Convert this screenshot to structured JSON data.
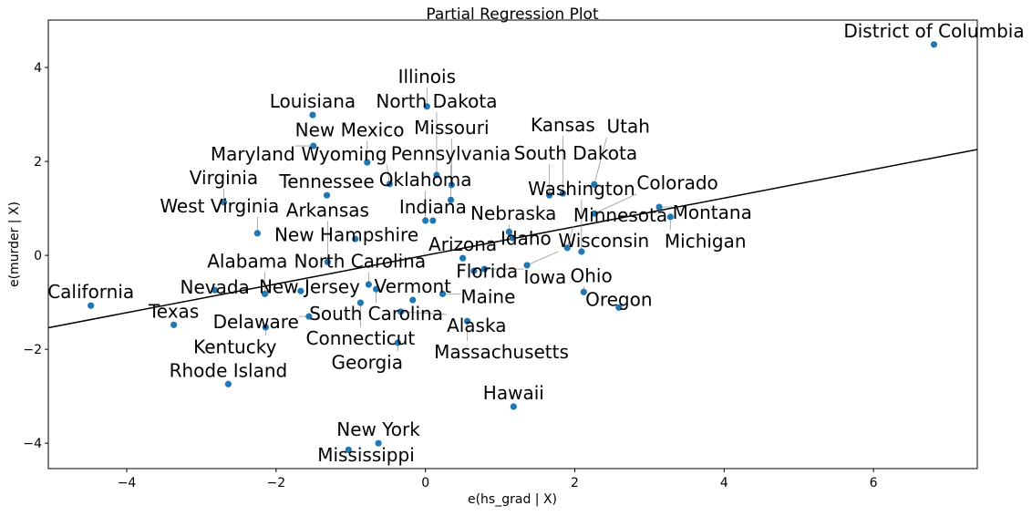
{
  "chart_data": {
    "type": "scatter",
    "title": "Partial Regression Plot",
    "xlabel": "e(hs_grad | X)",
    "ylabel": "e(murder | X)",
    "xlim": [
      -5.05,
      7.39
    ],
    "ylim": [
      -4.54,
      5.01
    ],
    "xticks": [
      -4,
      -2,
      0,
      2,
      4,
      6
    ],
    "yticks": [
      -4,
      -2,
      0,
      2,
      4
    ],
    "grid": false,
    "point_color": "#1f77b4",
    "line_color": "#000000",
    "fit_line": {
      "slope": 0.305,
      "intercept": 0.0
    },
    "points": [
      {
        "label": "District of Columbia",
        "x": 6.81,
        "y": 4.49
      },
      {
        "label": "Louisiana",
        "x": -1.51,
        "y": 2.99
      },
      {
        "label": "Illinois",
        "x": 0.02,
        "y": 3.17
      },
      {
        "label": "Maryland",
        "x": -1.5,
        "y": 2.33
      },
      {
        "label": "New Mexico",
        "x": -0.78,
        "y": 1.98
      },
      {
        "label": "North Dakota",
        "x": 0.15,
        "y": 1.71
      },
      {
        "label": "Wyoming",
        "x": -0.48,
        "y": 1.52
      },
      {
        "label": "Missouri",
        "x": 0.35,
        "y": 1.5
      },
      {
        "label": "Tennessee",
        "x": -1.32,
        "y": 1.28
      },
      {
        "label": "Pennsylvania",
        "x": 0.34,
        "y": 1.18
      },
      {
        "label": "South Dakota",
        "x": 1.66,
        "y": 1.28
      },
      {
        "label": "Kansas",
        "x": 1.84,
        "y": 1.32
      },
      {
        "label": "Utah",
        "x": 2.26,
        "y": 1.51
      },
      {
        "label": "Virginia",
        "x": -2.7,
        "y": 1.13
      },
      {
        "label": "Oklahoma",
        "x": 0.0,
        "y": 0.74
      },
      {
        "label": "Indiana",
        "x": 0.1,
        "y": 0.74
      },
      {
        "label": "Colorado",
        "x": 2.26,
        "y": 0.89
      },
      {
        "label": "Montana",
        "x": 3.13,
        "y": 1.03
      },
      {
        "label": "Michigan",
        "x": 3.28,
        "y": 0.82
      },
      {
        "label": "West Virginia",
        "x": -2.25,
        "y": 0.47
      },
      {
        "label": "New Hampshire",
        "x": -0.94,
        "y": 0.35
      },
      {
        "label": "Nebraska",
        "x": 1.12,
        "y": 0.5
      },
      {
        "label": "Idaho",
        "x": 1.17,
        "y": 0.37
      },
      {
        "label": "Minnesota",
        "x": 1.9,
        "y": 0.16
      },
      {
        "label": "Washington",
        "x": 2.09,
        "y": 0.08
      },
      {
        "label": "Arkansas",
        "x": -1.31,
        "y": -0.14
      },
      {
        "label": "Arizona",
        "x": 0.5,
        "y": -0.06
      },
      {
        "label": "Florida",
        "x": 0.65,
        "y": -0.33
      },
      {
        "label": "Iowa",
        "x": 0.79,
        "y": -0.29
      },
      {
        "label": "Wisconsin",
        "x": 1.36,
        "y": -0.21
      },
      {
        "label": "Nevada",
        "x": -2.82,
        "y": -0.74
      },
      {
        "label": "Alabama",
        "x": -2.15,
        "y": -0.82
      },
      {
        "label": "New Jersey",
        "x": -1.67,
        "y": -0.76
      },
      {
        "label": "North Carolina",
        "x": -0.76,
        "y": -0.62
      },
      {
        "label": "South Carolina",
        "x": -0.66,
        "y": -0.72
      },
      {
        "label": "Vermont",
        "x": -0.17,
        "y": -0.95
      },
      {
        "label": "Maine",
        "x": 0.23,
        "y": -0.82
      },
      {
        "label": "Connecticut",
        "x": -0.87,
        "y": -1.01
      },
      {
        "label": "Alaska",
        "x": -0.33,
        "y": -1.2
      },
      {
        "label": "California",
        "x": -4.48,
        "y": -1.07
      },
      {
        "label": "Ohio",
        "x": 2.12,
        "y": -0.78
      },
      {
        "label": "Oregon",
        "x": 2.59,
        "y": -1.11
      },
      {
        "label": "Delaware",
        "x": -1.56,
        "y": -1.3
      },
      {
        "label": "Texas",
        "x": -3.37,
        "y": -1.48
      },
      {
        "label": "Kentucky",
        "x": -2.14,
        "y": -1.53
      },
      {
        "label": "Massachusetts",
        "x": 0.56,
        "y": -1.4
      },
      {
        "label": "Georgia",
        "x": -0.37,
        "y": -1.86
      },
      {
        "label": "Rhode Island",
        "x": -2.64,
        "y": -2.74
      },
      {
        "label": "Hawaii",
        "x": 1.18,
        "y": -3.22
      },
      {
        "label": "New York",
        "x": -0.63,
        "y": -4.0
      },
      {
        "label": "Mississippi",
        "x": -1.03,
        "y": -4.14
      }
    ]
  }
}
